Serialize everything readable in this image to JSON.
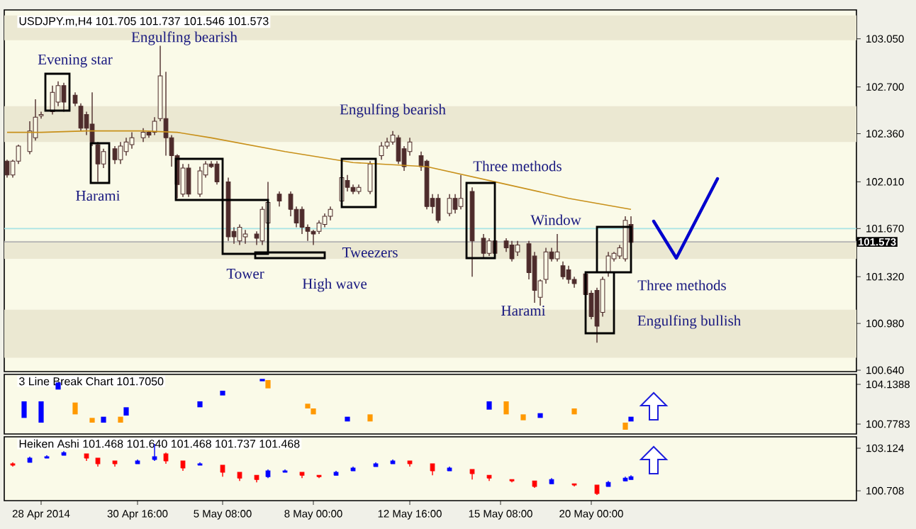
{
  "chart_data": [
    {
      "type": "candlestick",
      "title": "USDJPY.m,H4  101.705 101.737 101.546 101.573",
      "color": "#4d2b2b",
      "tick_labels": "y",
      "categories": [
        null,
        null,
        null,
        null,
        null,
        null,
        null,
        null,
        null,
        null,
        null,
        null,
        null,
        null,
        null,
        null,
        null,
        null,
        null,
        null,
        null,
        null,
        null,
        null,
        null,
        null,
        null,
        null,
        null,
        null,
        null,
        null,
        null,
        null,
        null,
        null,
        null,
        null,
        null,
        null,
        null,
        null,
        null,
        null,
        null,
        null,
        null,
        null,
        null,
        null,
        null,
        null,
        null,
        null,
        null,
        null,
        null,
        null,
        null,
        null,
        null,
        null,
        null,
        null,
        null,
        null,
        null,
        null,
        null,
        null,
        null,
        null,
        null,
        null,
        null,
        null,
        null,
        null,
        null,
        null,
        null,
        null,
        null,
        null,
        null,
        null,
        null,
        null,
        null,
        null,
        null,
        null,
        null,
        null,
        null,
        null,
        null,
        null,
        null,
        null,
        null,
        null,
        null,
        null,
        null,
        null,
        null,
        null,
        null,
        null,
        null,
        null,
        null,
        null,
        null,
        null,
        null,
        null,
        null,
        null,
        null,
        null,
        null,
        null,
        null,
        null,
        null,
        null,
        null,
        null,
        null,
        null,
        null,
        null,
        null,
        null,
        null,
        null,
        null,
        null,
        null,
        null,
        null,
        null,
        null,
        null,
        null,
        null,
        null,
        null
      ],
      "ohlc": [
        [
          102.16,
          102.17,
          102.04,
          102.06
        ],
        [
          102.06,
          102.17,
          102.04,
          102.16
        ],
        [
          102.16,
          102.28,
          102.14,
          102.27
        ],
        null,
        [
          102.23,
          102.45,
          102.21,
          102.38
        ],
        [
          102.33,
          102.61,
          102.31,
          102.48
        ],
        [
          102.49,
          102.52,
          102.47,
          102.5
        ],
        null,
        [
          102.52,
          102.71,
          102.5,
          102.66
        ],
        [
          102.59,
          102.74,
          102.56,
          102.71
        ],
        [
          102.71,
          102.73,
          102.52,
          102.59
        ],
        null,
        [
          102.64,
          102.66,
          102.56,
          102.58
        ],
        [
          102.56,
          102.58,
          102.38,
          102.4
        ],
        [
          102.5,
          102.52,
          102.35,
          102.4
        ],
        [
          102.43,
          102.66,
          102.27,
          102.3
        ],
        [
          102.28,
          102.3,
          102.01,
          102.14
        ],
        [
          102.14,
          102.25,
          102.11,
          102.23
        ],
        null,
        [
          102.25,
          102.27,
          102.14,
          102.17
        ],
        [
          102.17,
          102.3,
          102.14,
          102.27
        ],
        [
          102.23,
          102.33,
          102.2,
          102.3
        ],
        [
          102.28,
          102.37,
          102.25,
          102.33
        ],
        null,
        [
          102.33,
          102.4,
          102.3,
          102.37
        ],
        [
          102.37,
          102.38,
          102.33,
          102.35
        ],
        [
          102.37,
          102.48,
          102.35,
          102.45
        ],
        [
          102.47,
          103.0,
          102.45,
          102.78
        ],
        [
          102.47,
          102.81,
          102.2,
          102.33
        ],
        [
          102.33,
          102.35,
          102.12,
          102.2
        ],
        [
          102.2,
          102.21,
          101.89,
          101.99
        ],
        [
          101.92,
          102.14,
          101.9,
          102.11
        ],
        [
          102.11,
          102.14,
          101.9,
          101.92
        ],
        null,
        [
          101.92,
          102.12,
          101.9,
          102.09
        ],
        [
          102.06,
          102.16,
          102.04,
          102.14
        ],
        [
          102.14,
          102.16,
          102.11,
          102.12
        ],
        [
          102.14,
          102.16,
          101.99,
          102.01
        ],
        null,
        [
          102.01,
          102.04,
          101.58,
          101.61
        ],
        [
          101.65,
          101.68,
          101.56,
          101.61
        ],
        [
          101.58,
          101.7,
          101.55,
          101.68
        ],
        [
          101.61,
          101.66,
          101.56,
          101.63
        ],
        null,
        [
          101.63,
          101.65,
          101.55,
          101.6
        ],
        [
          101.58,
          101.83,
          101.55,
          101.81
        ],
        [
          101.71,
          102.01,
          101.68,
          101.86
        ],
        null,
        [
          101.92,
          101.94,
          101.83,
          101.87
        ],
        null,
        [
          101.92,
          101.94,
          101.76,
          101.81
        ],
        [
          101.81,
          101.83,
          101.68,
          101.71
        ],
        [
          101.81,
          101.83,
          101.63,
          101.68
        ],
        [
          101.68,
          101.7,
          101.58,
          101.65
        ],
        [
          101.65,
          101.66,
          101.55,
          101.63
        ],
        [
          101.65,
          101.73,
          101.63,
          101.71
        ],
        [
          101.7,
          101.78,
          101.68,
          101.76
        ],
        [
          101.76,
          101.83,
          101.73,
          101.81
        ],
        null,
        [
          101.87,
          102.07,
          101.86,
          102.04
        ],
        [
          102.02,
          102.06,
          101.94,
          101.97
        ],
        [
          101.97,
          101.99,
          101.92,
          101.94
        ],
        [
          101.94,
          101.99,
          101.92,
          101.97
        ],
        null,
        [
          101.94,
          102.16,
          101.92,
          102.14
        ],
        null,
        [
          102.2,
          102.3,
          102.17,
          102.27
        ],
        [
          102.27,
          102.33,
          102.25,
          102.3
        ],
        [
          102.3,
          102.38,
          102.28,
          102.35
        ],
        [
          102.33,
          102.35,
          102.14,
          102.16
        ],
        [
          102.25,
          102.27,
          102.09,
          102.12
        ],
        [
          102.23,
          102.33,
          102.2,
          102.3
        ],
        null,
        [
          102.2,
          102.23,
          102.09,
          102.12
        ],
        [
          102.16,
          102.17,
          101.81,
          101.83
        ],
        [
          101.89,
          101.92,
          101.78,
          101.83
        ],
        [
          101.89,
          101.92,
          101.71,
          101.73
        ],
        null,
        [
          101.78,
          101.92,
          101.76,
          101.89
        ],
        [
          101.89,
          101.92,
          101.78,
          101.81
        ],
        [
          101.83,
          102.06,
          101.81,
          101.89
        ],
        null,
        [
          101.94,
          101.97,
          101.32,
          101.58
        ],
        null,
        [
          101.6,
          101.63,
          101.45,
          101.49
        ],
        [
          101.49,
          101.6,
          101.47,
          101.58
        ],
        [
          101.58,
          101.6,
          101.45,
          101.49
        ],
        null,
        [
          101.58,
          101.6,
          101.5,
          101.53
        ],
        [
          101.55,
          101.58,
          101.43,
          101.45
        ],
        [
          101.5,
          101.58,
          101.47,
          101.55
        ],
        null,
        [
          101.56,
          101.58,
          101.3,
          101.35
        ],
        [
          101.47,
          101.5,
          101.13,
          101.22
        ],
        [
          101.17,
          101.3,
          101.11,
          101.29
        ],
        [
          101.3,
          101.53,
          101.27,
          101.5
        ],
        [
          101.5,
          101.53,
          101.43,
          101.45
        ],
        [
          101.45,
          101.63,
          101.43,
          101.5
        ],
        [
          101.4,
          101.43,
          101.3,
          101.32
        ],
        [
          101.37,
          101.4,
          101.27,
          101.3
        ],
        [
          101.3,
          101.32,
          101.24,
          101.27
        ],
        null,
        [
          101.34,
          101.35,
          101.17,
          101.19
        ],
        [
          101.2,
          101.22,
          101.01,
          101.03
        ],
        [
          101.22,
          101.24,
          100.84,
          100.96
        ],
        [
          101.06,
          101.32,
          101.03,
          101.3
        ],
        [
          101.35,
          101.5,
          101.32,
          101.47
        ],
        [
          101.45,
          101.5,
          101.43,
          101.49
        ],
        [
          101.47,
          101.55,
          101.45,
          101.53
        ],
        [
          101.45,
          101.76,
          101.43,
          101.73
        ],
        [
          101.7,
          101.76,
          101.55,
          101.57
        ],
        null,
        null,
        null,
        null,
        null,
        null,
        null,
        null,
        null,
        null,
        null,
        null,
        null,
        null,
        null,
        null,
        null,
        null,
        null,
        null,
        null,
        null,
        null,
        null,
        null,
        null,
        null,
        null,
        null,
        null,
        null,
        null,
        null,
        null,
        null,
        null,
        null,
        null,
        null
      ],
      "series": [
        {
          "type": "line",
          "color": "#c8901a",
          "values": [
            102.37,
            null,
            null,
            null,
            null,
            null,
            102.37,
            null,
            null,
            null,
            null,
            null,
            null,
            null,
            102.38,
            null,
            null,
            null,
            null,
            null,
            null,
            null,
            null,
            null,
            102.38,
            null,
            null,
            null,
            null,
            null,
            102.37,
            null,
            null,
            null,
            null,
            null,
            102.33,
            null,
            null,
            null,
            null,
            null,
            null,
            null,
            null,
            null,
            null,
            null,
            null,
            102.23,
            null,
            null,
            null,
            null,
            null,
            null,
            null,
            null,
            null,
            null,
            null,
            102.15,
            null,
            null,
            null,
            null,
            null,
            null,
            null,
            null,
            null,
            null,
            null,
            null,
            102.12,
            null,
            null,
            null,
            null,
            null,
            null,
            null,
            null,
            null,
            null,
            null,
            102.01,
            null,
            null,
            null,
            null,
            null,
            null,
            null,
            null,
            null,
            null,
            null,
            null,
            101.89,
            null,
            null,
            null,
            null,
            null,
            null,
            null,
            null,
            null,
            null,
            101.81,
            null,
            null,
            null,
            null,
            null,
            null,
            null,
            null,
            null,
            null,
            null,
            null,
            null,
            null,
            null,
            null,
            null,
            null,
            null,
            null,
            null,
            null,
            null,
            null,
            null,
            null,
            null,
            null,
            null,
            null,
            null,
            null,
            null,
            null,
            null,
            null,
            null,
            null,
            null
          ]
        }
      ],
      "ylim": [
        100.63,
        103.26
      ],
      "yticks": [
        {
          "value": 103.05,
          "label": "103.050"
        },
        {
          "value": 102.7,
          "label": "102.700"
        },
        {
          "value": 102.36,
          "label": "102.360"
        },
        {
          "value": 102.01,
          "label": "102.010"
        },
        {
          "value": 101.67,
          "label": "101.670"
        },
        {
          "value": 101.32,
          "label": "101.320"
        },
        {
          "value": 100.98,
          "label": "100.980"
        },
        {
          "value": 100.64,
          "label": "100.640"
        }
      ],
      "ref_lines": [
        {
          "axis": "y",
          "value": 101.573,
          "label": "101.573",
          "color": "#b4b4b4"
        },
        {
          "axis": "y",
          "value": 101.67,
          "color": "#a8e4e4"
        }
      ],
      "bands": [
        {
          "axis": "y",
          "from": 103.04,
          "to": 103.22,
          "color": "#ebe8d2"
        },
        {
          "axis": "y",
          "from": 102.3,
          "to": 102.56,
          "color": "#ebe8d2"
        },
        {
          "axis": "y",
          "from": 101.45,
          "to": 101.58,
          "color": "#ebe8d2"
        },
        {
          "axis": "y",
          "from": 100.73,
          "to": 101.08,
          "color": "#ebe8d2"
        }
      ],
      "annotations": [
        {
          "text": "Evening star",
          "y": 102.66
        },
        {
          "text": "Engulfing bearish",
          "y": 103.0
        },
        {
          "text": "Harami",
          "y": 102.01
        },
        "Tower",
        "High wave",
        "Tweezers",
        {
          "text": "Engulfing bearish",
          "y": 102.38
        },
        "Three methods",
        "Window",
        {
          "text": "Harami",
          "y": 101.13
        },
        "Three methods",
        "Engulfing bullish"
      ]
    },
    {
      "type": "bar",
      "title": "3 Line Break Chart 101.7050",
      "tick_labels": "y",
      "categories": [
        null,
        null,
        null,
        null,
        null,
        null,
        null,
        null,
        null,
        null,
        null,
        null,
        null,
        null,
        null,
        null,
        null,
        null,
        null,
        null,
        null,
        null,
        null,
        null,
        null,
        null,
        null,
        null,
        null,
        null,
        null,
        null,
        null,
        null,
        null,
        null,
        null,
        null,
        null,
        null,
        null,
        null,
        null,
        null,
        null,
        null,
        null,
        null,
        null,
        null,
        null,
        null,
        null,
        null,
        null,
        null,
        null,
        null,
        null,
        null,
        null,
        null,
        null,
        null,
        null,
        null,
        null,
        null,
        null,
        null,
        null,
        null,
        null,
        null,
        null,
        null,
        null,
        null,
        null,
        null,
        null,
        null,
        null,
        null,
        null,
        null,
        null,
        null,
        null,
        null,
        null,
        null,
        null,
        null,
        null,
        null,
        null,
        null,
        null,
        null,
        null,
        null,
        null,
        null,
        null,
        null,
        null,
        null,
        null,
        null,
        null,
        null,
        null,
        null,
        null,
        null,
        null,
        null,
        null,
        null,
        null,
        null,
        null,
        null,
        null,
        null,
        null,
        null,
        null,
        null,
        null,
        null,
        null,
        null,
        null,
        null,
        null,
        null,
        null,
        null,
        null,
        null,
        null,
        null,
        null,
        null,
        null,
        null,
        null,
        null
      ],
      "base": [
        null,
        null,
        null,
        101.3,
        null,
        null,
        100.9,
        null,
        null,
        103.7,
        null,
        null,
        101.6,
        null,
        null,
        100.9,
        null,
        100.9,
        null,
        null,
        100.9,
        101.5,
        null,
        null,
        null,
        null,
        null,
        null,
        null,
        null,
        null,
        null,
        null,
        null,
        102.2,
        null,
        null,
        null,
        103.2,
        null,
        null,
        null,
        null,
        null,
        null,
        104.4,
        103.8,
        null,
        null,
        null,
        null,
        null,
        null,
        102.1,
        101.6,
        null,
        null,
        null,
        null,
        null,
        101.0,
        null,
        null,
        null,
        101.0,
        null,
        null,
        null,
        null,
        null,
        null,
        null,
        null,
        null,
        null,
        null,
        null,
        null,
        null,
        null,
        null,
        null,
        null,
        null,
        null,
        102.0,
        null,
        null,
        101.6,
        null,
        null,
        101.1,
        null,
        null,
        101.3,
        null,
        null,
        null,
        null,
        null,
        101.6,
        null,
        null,
        null,
        null,
        null,
        null,
        null,
        null,
        100.3,
        101.0,
        null,
        null,
        null,
        null,
        null,
        null,
        null,
        null,
        null,
        null,
        null,
        null,
        null,
        null,
        null,
        null,
        null,
        null,
        null,
        null,
        null,
        null,
        null,
        null,
        null,
        null,
        null,
        null,
        null,
        null,
        null,
        null,
        null,
        null,
        null,
        null,
        null,
        null,
        null
      ],
      "values": [
        null,
        null,
        null,
        1.4,
        null,
        null,
        1.8,
        null,
        null,
        0.6,
        null,
        null,
        1.0,
        null,
        null,
        0.4,
        null,
        0.5,
        null,
        null,
        0.5,
        0.7,
        null,
        null,
        null,
        null,
        null,
        null,
        null,
        null,
        null,
        null,
        null,
        null,
        0.5,
        null,
        null,
        null,
        0.4,
        null,
        null,
        null,
        null,
        null,
        null,
        0.2,
        0.7,
        null,
        null,
        null,
        null,
        null,
        null,
        0.4,
        0.5,
        null,
        null,
        null,
        null,
        null,
        0.4,
        null,
        null,
        null,
        0.6,
        null,
        null,
        null,
        null,
        null,
        null,
        null,
        null,
        null,
        null,
        null,
        null,
        null,
        null,
        null,
        null,
        null,
        null,
        null,
        null,
        0.7,
        null,
        null,
        1.1,
        null,
        null,
        0.5,
        null,
        null,
        0.4,
        null,
        null,
        null,
        null,
        null,
        0.5,
        null,
        null,
        null,
        null,
        null,
        null,
        null,
        null,
        0.6,
        0.4,
        null,
        null,
        null,
        null,
        null,
        null,
        null,
        null,
        null,
        null,
        null,
        null,
        null,
        null,
        null,
        null,
        null,
        null,
        null,
        null,
        null,
        null,
        null,
        null,
        null,
        null,
        null,
        null,
        null,
        null,
        null,
        null,
        null,
        null,
        null,
        null,
        null,
        null,
        null
      ],
      "colors": [
        null,
        null,
        null,
        "#0000ff",
        null,
        null,
        "#0000ff",
        null,
        null,
        "#0000ff",
        null,
        null,
        "#ff9900",
        null,
        null,
        "#ff9900",
        null,
        "#0000ff",
        null,
        null,
        "#ff9900",
        "#0000ff",
        null,
        null,
        null,
        null,
        null,
        null,
        null,
        null,
        null,
        null,
        null,
        null,
        "#0000ff",
        null,
        null,
        null,
        "#0000ff",
        null,
        null,
        null,
        null,
        null,
        null,
        "#0000ff",
        "#ff9900",
        null,
        null,
        null,
        null,
        null,
        null,
        "#ff9900",
        "#ff9900",
        null,
        null,
        null,
        null,
        null,
        "#0000ff",
        null,
        null,
        null,
        "#ff9900",
        null,
        null,
        null,
        null,
        null,
        null,
        null,
        null,
        null,
        null,
        null,
        null,
        null,
        null,
        null,
        null,
        null,
        null,
        null,
        null,
        "#0000ff",
        null,
        null,
        "#ff9900",
        null,
        null,
        "#ff9900",
        null,
        null,
        "#0000ff",
        null,
        null,
        null,
        null,
        null,
        "#ff9900",
        null,
        null,
        null,
        null,
        null,
        null,
        null,
        null,
        "#ff9900",
        "#0000ff",
        null,
        null,
        null,
        null,
        null,
        null,
        null,
        null,
        null,
        null,
        null,
        null,
        null,
        null,
        null,
        null,
        null,
        null,
        null,
        null,
        null,
        null,
        null,
        null,
        null,
        null,
        null,
        null,
        null,
        null,
        null,
        null,
        null,
        null,
        null,
        null,
        null,
        null,
        null
      ],
      "ylim": [
        99.94,
        104.98
      ],
      "yticks": [
        104.1388,
        100.7783
      ]
    },
    {
      "type": "candlestick",
      "title": "Heiken Ashi 101.468 101.640 101.468 101.737 101.468",
      "categories": [
        null,
        null,
        null,
        null,
        null,
        null,
        "28 Apr 2014",
        null,
        null,
        null,
        null,
        null,
        null,
        null,
        null,
        null,
        null,
        null,
        null,
        null,
        null,
        null,
        null,
        "30 Apr 16:00",
        null,
        null,
        null,
        null,
        null,
        null,
        null,
        null,
        null,
        null,
        null,
        null,
        null,
        null,
        "5 May 08:00",
        null,
        null,
        null,
        null,
        null,
        null,
        null,
        null,
        null,
        null,
        null,
        null,
        null,
        null,
        null,
        "8 May 00:00",
        null,
        null,
        null,
        null,
        null,
        null,
        null,
        null,
        null,
        null,
        null,
        null,
        null,
        null,
        null,
        null,
        "12 May 16:00",
        null,
        null,
        null,
        null,
        null,
        null,
        null,
        null,
        null,
        null,
        null,
        null,
        null,
        null,
        null,
        "15 May 08:00",
        null,
        null,
        null,
        null,
        null,
        null,
        null,
        null,
        null,
        null,
        null,
        null,
        null,
        null,
        null,
        "20 May 00:00",
        null,
        null,
        null,
        null,
        null,
        null,
        null,
        null,
        null,
        null,
        null,
        null,
        null,
        null,
        null,
        null,
        null,
        null,
        null,
        null,
        null,
        null,
        null,
        null,
        null,
        null,
        null,
        null,
        null,
        null,
        null,
        null,
        null,
        null,
        null,
        null,
        null,
        null,
        null,
        null,
        null,
        null,
        null,
        null,
        null,
        null
      ],
      "ohlc": [
        null,
        [
          102.24,
          102.32,
          102.08,
          102.16
        ],
        null,
        null,
        [
          102.32,
          102.64,
          102.32,
          102.56
        ],
        null,
        null,
        [
          102.56,
          102.72,
          102.56,
          102.64
        ],
        null,
        null,
        [
          102.72,
          102.96,
          102.72,
          102.88
        ],
        null,
        null,
        null,
        [
          102.8,
          102.8,
          102.4,
          102.56
        ],
        null,
        [
          102.56,
          102.56,
          102.08,
          102.24
        ],
        null,
        null,
        [
          102.4,
          102.4,
          102.08,
          102.24
        ],
        null,
        null,
        null,
        [
          102.24,
          102.48,
          102.24,
          102.4
        ],
        null,
        null,
        [
          102.48,
          103.37,
          102.4,
          102.64
        ],
        null,
        [
          102.8,
          102.88,
          102.24,
          102.4
        ],
        null,
        null,
        [
          102.4,
          102.4,
          101.84,
          102.0
        ],
        null,
        null,
        [
          102.16,
          102.32,
          102.16,
          102.24
        ],
        null,
        null,
        null,
        [
          102.16,
          102.16,
          101.51,
          101.76
        ],
        null,
        null,
        [
          101.76,
          101.76,
          101.27,
          101.43
        ],
        null,
        null,
        [
          101.59,
          101.59,
          101.19,
          101.35
        ],
        null,
        [
          101.51,
          101.92,
          101.43,
          101.84
        ],
        null,
        null,
        [
          101.76,
          101.92,
          101.76,
          101.84
        ],
        null,
        null,
        [
          101.76,
          101.76,
          101.43,
          101.59
        ],
        null,
        null,
        [
          101.59,
          101.59,
          101.43,
          101.51
        ],
        null,
        null,
        [
          101.59,
          101.84,
          101.59,
          101.76
        ],
        null,
        null,
        [
          101.84,
          102.08,
          101.84,
          102.0
        ],
        null,
        null,
        null,
        [
          102.08,
          102.32,
          102.08,
          102.24
        ],
        null,
        null,
        [
          102.24,
          102.48,
          102.24,
          102.4
        ],
        null,
        null,
        [
          102.4,
          102.4,
          102.08,
          102.24
        ],
        null,
        null,
        null,
        [
          102.24,
          102.24,
          101.59,
          101.84
        ],
        null,
        null,
        [
          101.84,
          102.08,
          101.84,
          102.0
        ],
        null,
        null,
        null,
        [
          101.92,
          101.92,
          101.35,
          101.68
        ],
        null,
        null,
        [
          101.59,
          101.59,
          101.27,
          101.43
        ],
        null,
        null,
        null,
        [
          101.35,
          101.35,
          101.19,
          101.27
        ],
        null,
        null,
        null,
        [
          101.27,
          101.27,
          100.87,
          100.95
        ],
        null,
        null,
        [
          101.11,
          101.43,
          101.11,
          101.35
        ],
        null,
        null,
        null,
        [
          101.11,
          101.11,
          100.95,
          101.03
        ],
        null,
        null,
        null,
        [
          101.03,
          101.03,
          100.47,
          100.55
        ],
        null,
        [
          100.95,
          101.27,
          100.95,
          101.19
        ],
        null,
        null,
        [
          101.27,
          101.51,
          101.27,
          101.43
        ],
        [
          101.35,
          101.59,
          101.35,
          101.51
        ],
        null,
        null,
        null,
        null,
        null,
        null,
        null,
        null,
        null,
        null,
        null,
        null,
        null,
        null,
        null,
        null,
        null,
        null,
        null,
        null,
        null,
        null,
        null,
        null,
        null,
        null,
        null,
        null,
        null,
        null,
        null,
        null,
        null,
        null,
        null,
        null,
        null,
        null,
        null
      ],
      "colors": [
        null,
        "#ff0000",
        null,
        null,
        "#0000ff",
        null,
        null,
        "#0000ff",
        null,
        null,
        "#0000ff",
        null,
        null,
        null,
        "#ff0000",
        null,
        "#ff0000",
        null,
        null,
        "#ff0000",
        null,
        null,
        null,
        "#0000ff",
        null,
        null,
        "#0000ff",
        null,
        "#ff0000",
        null,
        null,
        "#ff0000",
        null,
        null,
        "#0000ff",
        null,
        null,
        null,
        "#ff0000",
        null,
        null,
        "#ff0000",
        null,
        null,
        "#ff0000",
        null,
        "#0000ff",
        null,
        null,
        "#0000ff",
        null,
        null,
        "#ff0000",
        null,
        null,
        "#ff0000",
        null,
        null,
        "#0000ff",
        null,
        null,
        "#0000ff",
        null,
        null,
        null,
        "#0000ff",
        null,
        null,
        "#0000ff",
        null,
        null,
        "#ff0000",
        null,
        null,
        null,
        "#ff0000",
        null,
        null,
        "#0000ff",
        null,
        null,
        null,
        "#ff0000",
        null,
        null,
        "#ff0000",
        null,
        null,
        null,
        "#ff0000",
        null,
        null,
        null,
        "#ff0000",
        null,
        null,
        "#0000ff",
        null,
        null,
        null,
        "#ff0000",
        null,
        null,
        null,
        "#ff0000",
        null,
        "#0000ff",
        null,
        null,
        "#0000ff",
        "#0000ff",
        null,
        null,
        null,
        null,
        null,
        null,
        null,
        null,
        null,
        null,
        null,
        null,
        null,
        null,
        null,
        null,
        null,
        null,
        null,
        null,
        null,
        null,
        null,
        null,
        null,
        null,
        null,
        null,
        null,
        null,
        null,
        null,
        null,
        null,
        null,
        null,
        null,
        null,
        null
      ],
      "ylim": [
        100.15,
        103.77
      ],
      "yticks": [
        103.124,
        100.708
      ]
    }
  ]
}
